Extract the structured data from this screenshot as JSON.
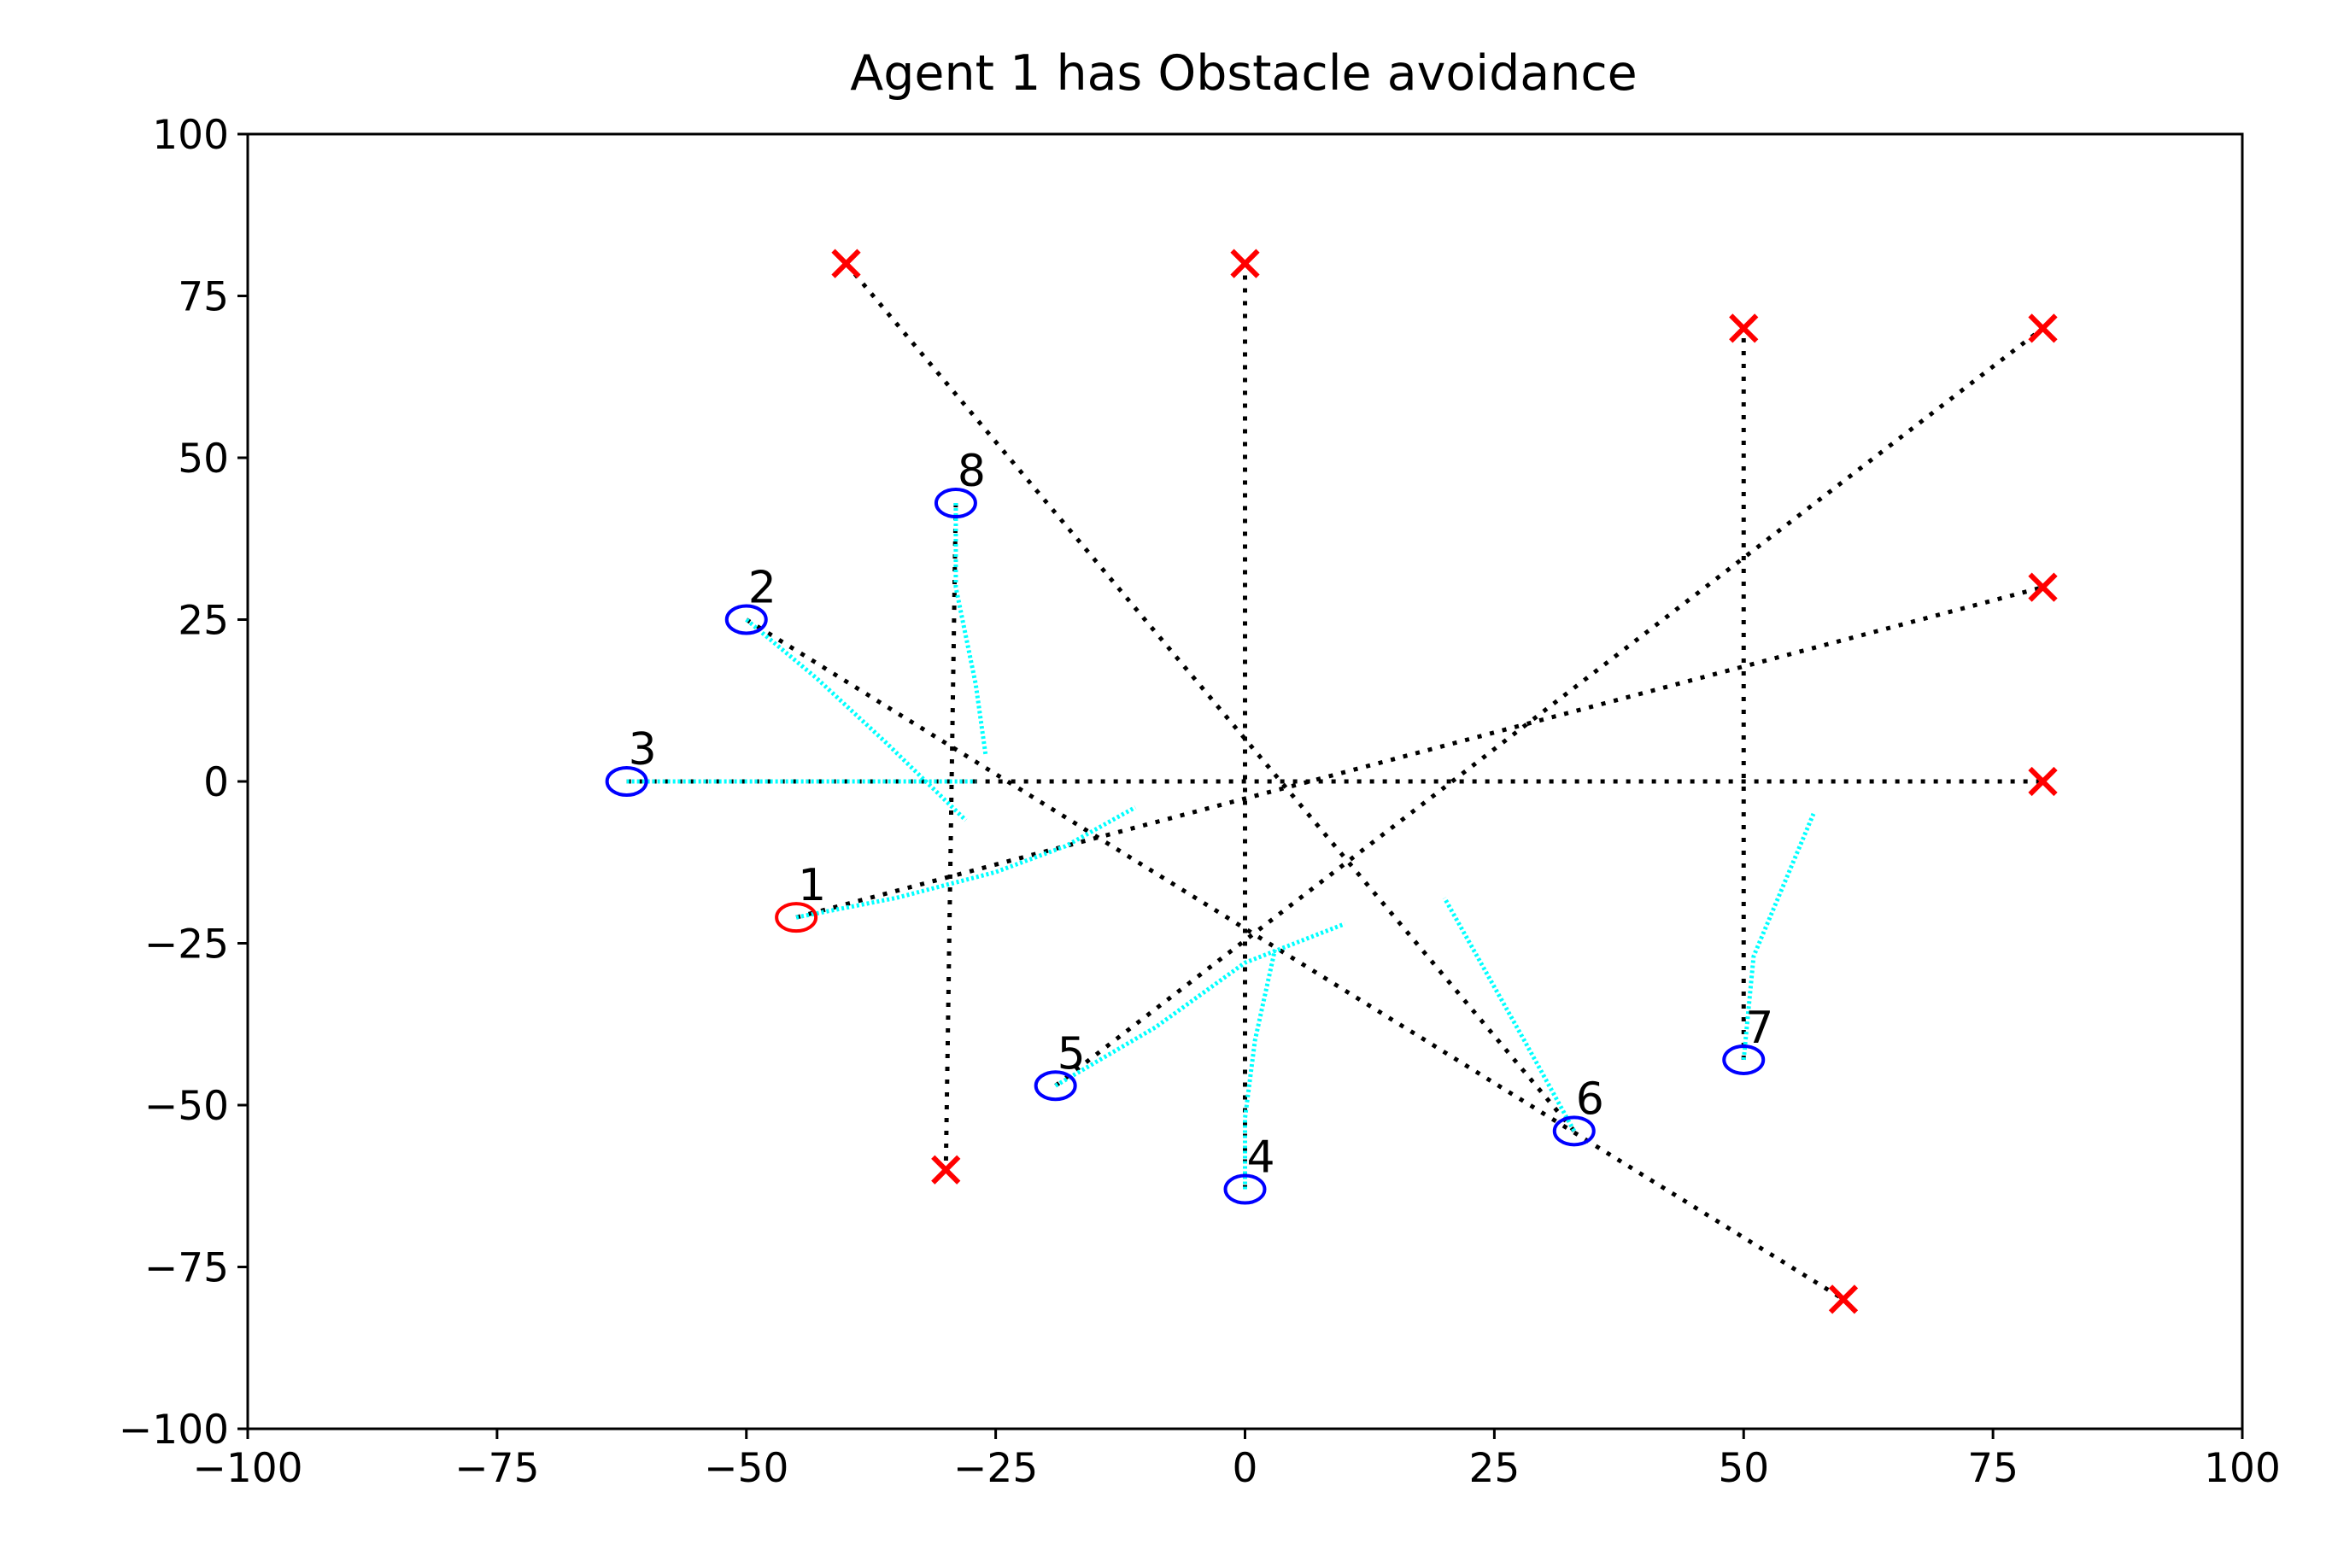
{
  "chart_data": {
    "type": "scatter",
    "title": "Agent 1 has Obstacle avoidance",
    "xlabel": "",
    "ylabel": "",
    "xlim": [
      -100,
      100
    ],
    "ylim": [
      -100,
      100
    ],
    "x_ticks": [
      -100,
      -75,
      -50,
      -25,
      0,
      25,
      50,
      75,
      100
    ],
    "y_ticks": [
      -100,
      -75,
      -50,
      -25,
      0,
      25,
      50,
      75,
      100
    ],
    "x_tick_labels": [
      "−100",
      "−75",
      "−50",
      "−25",
      "0",
      "25",
      "50",
      "75",
      "100"
    ],
    "y_tick_labels": [
      "−100",
      "−75",
      "−50",
      "−25",
      "0",
      "25",
      "50",
      "75",
      "100"
    ],
    "grid": false,
    "colors": {
      "obstacle_agent": "#ff0000",
      "agent": "#0000ff",
      "goal": "#ff0000",
      "trail": "#00ffff",
      "path": "#000000"
    },
    "agents": [
      {
        "label": "1",
        "x": -45,
        "y": -21,
        "goal": [
          80,
          30
        ],
        "highlight": true,
        "trail": [
          [
            -45,
            -21
          ],
          [
            -35,
            -18
          ],
          [
            -25,
            -14
          ],
          [
            -18,
            -10
          ],
          [
            -11,
            -4
          ]
        ]
      },
      {
        "label": "2",
        "x": -50,
        "y": 25,
        "goal": [
          60,
          -80
        ],
        "highlight": false,
        "trail": [
          [
            -50,
            25
          ],
          [
            -43,
            16
          ],
          [
            -36,
            6
          ],
          [
            -28,
            -6
          ]
        ]
      },
      {
        "label": "3",
        "x": -62,
        "y": 0,
        "goal": [
          80,
          0
        ],
        "highlight": false,
        "trail": [
          [
            -62,
            0
          ],
          [
            -45,
            0
          ],
          [
            -27,
            0
          ]
        ]
      },
      {
        "label": "4",
        "x": 0,
        "y": -63,
        "goal": [
          0,
          80
        ],
        "highlight": false,
        "trail": [
          [
            0,
            -63
          ],
          [
            0,
            -52
          ],
          [
            1,
            -40
          ],
          [
            3,
            -26
          ]
        ]
      },
      {
        "label": "5",
        "x": -19,
        "y": -47,
        "goal": [
          80,
          70
        ],
        "highlight": false,
        "trail": [
          [
            -19,
            -47
          ],
          [
            -9,
            -38
          ],
          [
            0,
            -28
          ],
          [
            10,
            -22
          ]
        ]
      },
      {
        "label": "6",
        "x": 33,
        "y": -54,
        "goal": [
          -40,
          80
        ],
        "highlight": false,
        "trail": [
          [
            33,
            -54
          ],
          [
            28,
            -40
          ],
          [
            20,
            -18
          ]
        ]
      },
      {
        "label": "7",
        "x": 50,
        "y": -43,
        "goal": [
          50,
          70
        ],
        "highlight": false,
        "trail": [
          [
            50,
            -43
          ],
          [
            51,
            -27
          ],
          [
            54,
            -16
          ],
          [
            57,
            -5
          ]
        ]
      },
      {
        "label": "8",
        "x": -29,
        "y": 43,
        "goal": [
          -30,
          -60
        ],
        "highlight": false,
        "trail": [
          [
            -29,
            43
          ],
          [
            -29,
            30
          ],
          [
            -27,
            15
          ],
          [
            -26,
            4
          ]
        ]
      }
    ]
  }
}
